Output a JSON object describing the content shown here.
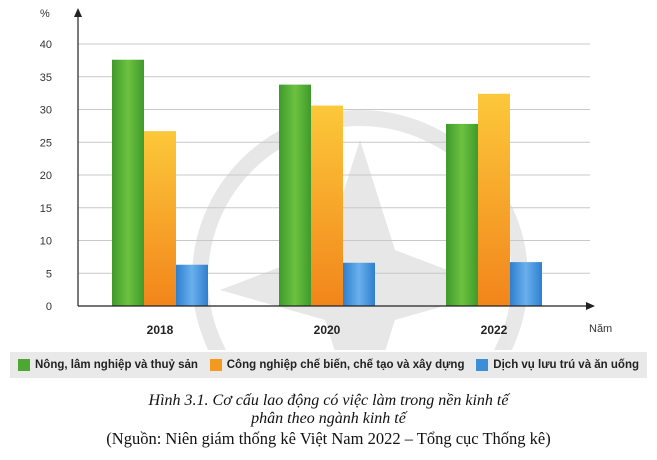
{
  "chart_data": {
    "type": "bar",
    "y_unit_label": "%",
    "x_unit_label": "Năm",
    "categories": [
      "2018",
      "2020",
      "2022"
    ],
    "ylim": [
      0,
      40
    ],
    "yticks": [
      0,
      5,
      10,
      15,
      20,
      25,
      30,
      35,
      40
    ],
    "grid": true,
    "legend_position": "bottom",
    "series": [
      {
        "name": "Nông, lâm nghiệp và thuỷ sản",
        "color": "#4ca833",
        "values": [
          37.6,
          33.8,
          27.8
        ]
      },
      {
        "name": "Công nghiệp chế biến, chế tạo và xây dựng",
        "color": "#f39a1e",
        "values": [
          26.7,
          30.6,
          32.4
        ]
      },
      {
        "name": "Dịch vụ lưu trú và ăn uống",
        "color": "#3c8fd6",
        "values": [
          6.3,
          6.6,
          6.7
        ]
      }
    ]
  },
  "caption": {
    "line1": "Hình 3.1. Cơ cấu lao động có việc làm trong nền kinh tế",
    "line2": "phân theo ngành kinh tế",
    "source": "(Nguồn: Niên giám thống kê Việt Nam 2022 – Tổng cục Thống kê)"
  }
}
